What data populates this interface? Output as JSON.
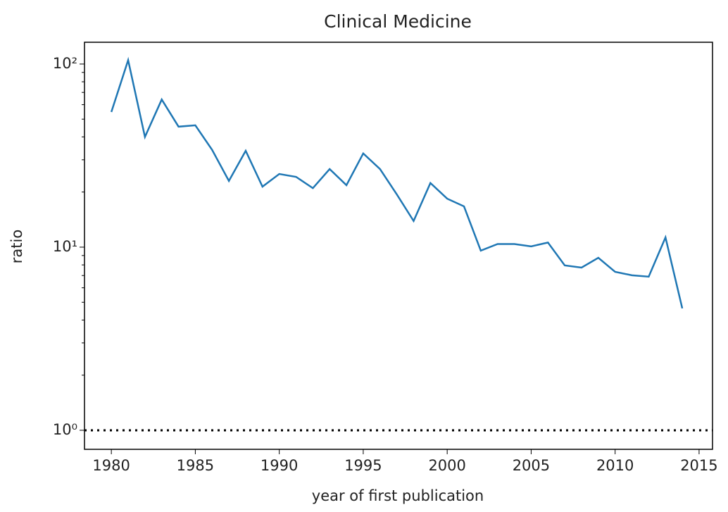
{
  "chart_data": {
    "type": "line",
    "title": "Clinical Medicine",
    "x_label": "year of first publication",
    "y_label": "ratio",
    "x": [
      1980,
      1981,
      1982,
      1983,
      1984,
      1985,
      1986,
      1987,
      1988,
      1989,
      1990,
      1991,
      1992,
      1993,
      1994,
      1995,
      1996,
      1997,
      1998,
      1999,
      2000,
      2001,
      2002,
      2003,
      2004,
      2005,
      2006,
      2007,
      2008,
      2009,
      2010,
      2011,
      2012,
      2013,
      2014
    ],
    "series": [
      {
        "name": "ratio",
        "color": "#1f77b4",
        "values": [
          54.7,
          105,
          40,
          64,
          45.5,
          46.3,
          34,
          23,
          33.6,
          21.4,
          25.1,
          24.2,
          21,
          26.7,
          21.8,
          32.5,
          26.7,
          19.4,
          13.9,
          22.4,
          18.4,
          16.7,
          9.57,
          10.4,
          10.4,
          10.1,
          10.6,
          7.95,
          7.73,
          8.75,
          7.33,
          7.02,
          6.9,
          11.3,
          4.63
        ]
      }
    ],
    "xlim": [
      1978.4,
      2015.8
    ],
    "xticks": [
      1980,
      1985,
      1990,
      1995,
      2000,
      2005,
      2010,
      2015
    ],
    "ylim": [
      0.787,
      131.5
    ],
    "ylog": true,
    "yticks": [
      {
        "value": 1,
        "label": "10⁰"
      },
      {
        "value": 10,
        "label": "10¹"
      },
      {
        "value": 100,
        "label": "10²"
      }
    ],
    "yticks_minor": [
      2,
      3,
      4,
      5,
      6,
      7,
      8,
      9,
      20,
      30,
      40,
      50,
      60,
      70,
      80,
      90
    ],
    "hline": {
      "value": 1,
      "style": "dotted",
      "color": "#000000"
    }
  }
}
